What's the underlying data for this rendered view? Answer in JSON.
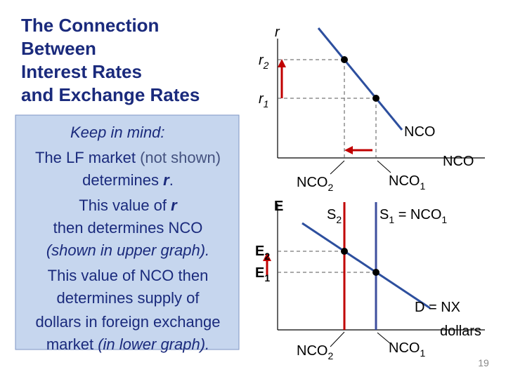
{
  "title": {
    "lines": [
      "The Connection",
      "Between",
      "Interest Rates",
      "and Exchange Rates"
    ]
  },
  "note": {
    "heading": "Keep in mind:",
    "lines": [
      [
        "The LF market ",
        "(not shown)"
      ],
      [
        "determines ",
        "r",
        "."
      ],
      [
        "This value of ",
        "r"
      ],
      [
        "then determines NCO"
      ],
      [
        "(shown in upper graph)."
      ],
      [
        "This value of NCO then"
      ],
      [
        "determines supply of"
      ],
      [
        "dollars in foreign exchange"
      ],
      [
        "market ",
        "(in lower graph)."
      ]
    ]
  },
  "upper": {
    "y_axis": "r",
    "r2": {
      "base": "r",
      "sub": "2"
    },
    "r1": {
      "base": "r",
      "sub": "1"
    },
    "curve": "NCO",
    "x_axis": "NCO",
    "nco2": {
      "base": "NCO",
      "sub": "2"
    },
    "nco1": {
      "base": "NCO",
      "sub": "1"
    }
  },
  "lower": {
    "y_axis": "E",
    "e2": {
      "base": "E",
      "sub": "2"
    },
    "e1": {
      "base": "E",
      "sub": "1"
    },
    "s2": {
      "base": "S",
      "sub": "2"
    },
    "s1": {
      "base": "S",
      "sub": "1",
      "rest": " = NCO",
      "sub2": "1"
    },
    "demand": "D = NX",
    "x_axis": "dollars",
    "nco2": {
      "base": "NCO",
      "sub": "2"
    },
    "nco1": {
      "base": "NCO",
      "sub": "1"
    }
  },
  "slide_number": "19"
}
